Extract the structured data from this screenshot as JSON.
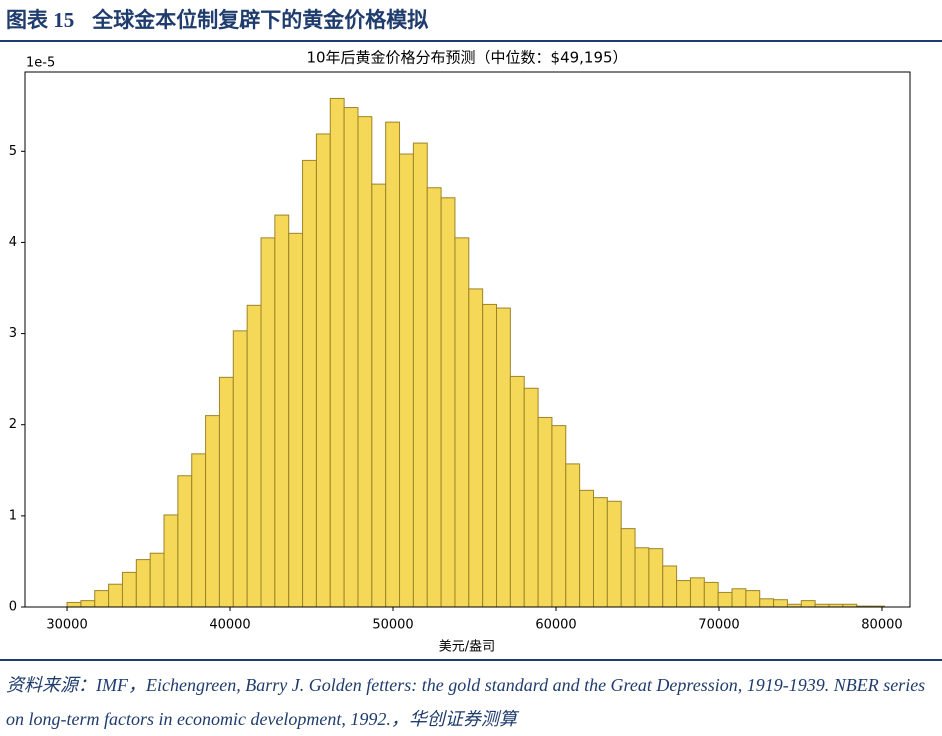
{
  "header": {
    "label": "图表 15",
    "title": "全球金本位制复辟下的黄金价格模拟"
  },
  "chart_data": {
    "type": "histogram",
    "title": "10年后黄金价格分布预测（中位数：$49,195）",
    "x_label": "美元/盎司",
    "y_offset_label": "1e-5",
    "bins": [
      30000,
      30850,
      31700,
      32550,
      33400,
      34250,
      35100,
      35950,
      36800,
      37650,
      38500,
      39350,
      40200,
      41050,
      41900,
      42750,
      43600,
      44450,
      45300,
      46150,
      47000,
      47850,
      48700,
      49550,
      50400,
      51250,
      52100,
      52950,
      53800,
      54650,
      55500,
      56350,
      57200,
      58050,
      58900,
      59750,
      60600,
      61450,
      62300,
      63150,
      64000,
      64850,
      65700,
      66550,
      67400,
      68250,
      69100,
      69950,
      70800,
      71650,
      72500,
      73350,
      74200,
      75050,
      75900,
      76750,
      77600,
      78450,
      79300,
      80150
    ],
    "values": [
      0.05,
      0.07,
      0.18,
      0.25,
      0.38,
      0.52,
      0.59,
      1.01,
      1.44,
      1.68,
      2.1,
      2.52,
      3.03,
      3.31,
      4.05,
      4.3,
      4.1,
      4.9,
      5.19,
      5.58,
      5.48,
      5.38,
      4.64,
      5.32,
      4.97,
      5.09,
      4.6,
      4.49,
      4.05,
      3.49,
      3.32,
      3.28,
      2.53,
      2.4,
      2.08,
      1.99,
      1.57,
      1.28,
      1.2,
      1.16,
      0.86,
      0.65,
      0.64,
      0.45,
      0.29,
      0.32,
      0.27,
      0.16,
      0.2,
      0.18,
      0.09,
      0.08,
      0.03,
      0.07,
      0.03,
      0.03,
      0.03,
      0.01,
      0.01
    ],
    "color": "#f5d858",
    "edge_color": "#9c8428",
    "xlim": [
      27420,
      81720
    ],
    "xticks": [
      30000,
      40000,
      50000,
      60000,
      70000,
      80000
    ],
    "ylim": [
      0,
      5.87
    ],
    "yticks": [
      0,
      1,
      2,
      3,
      4,
      5
    ],
    "grid": false
  },
  "source": "资料来源：IMF，Eichengreen, Barry J. Golden fetters: the gold standard and the Great Depression, 1919-1939. NBER series on long-term factors in economic development, 1992.，华创证券测算"
}
